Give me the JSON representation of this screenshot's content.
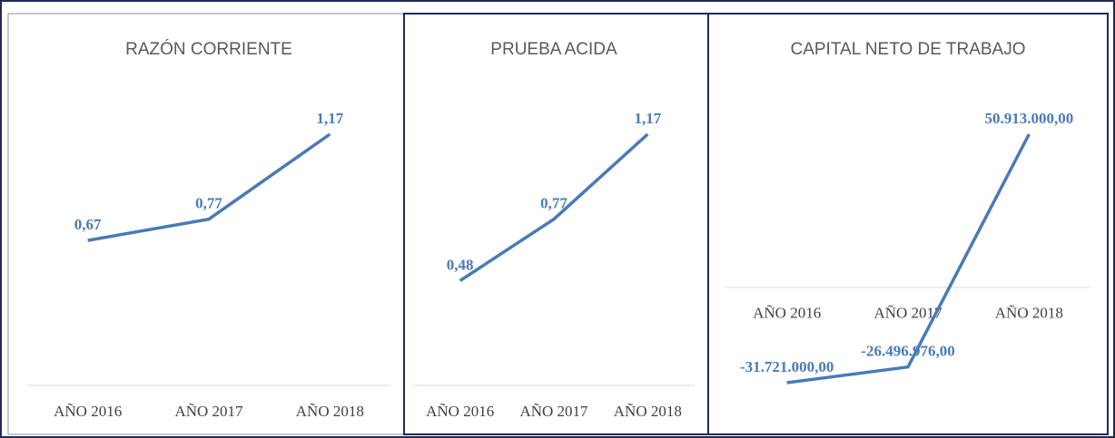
{
  "chart_data": [
    {
      "type": "line",
      "title": "RAZÓN CORRIENTE",
      "categories": [
        "AÑO 2016",
        "AÑO 2017",
        "AÑO 2018"
      ],
      "values": [
        0.67,
        0.77,
        1.17
      ],
      "value_labels": [
        "0,67",
        "0,77",
        "1,17"
      ],
      "color": "#4a7ab5"
    },
    {
      "type": "line",
      "title": "PRUEBA ACIDA",
      "categories": [
        "AÑO 2016",
        "AÑO 2017",
        "AÑO 2018"
      ],
      "values": [
        0.48,
        0.77,
        1.17
      ],
      "value_labels": [
        "0,48",
        "0,77",
        "1,17"
      ],
      "color": "#4a7ab5"
    },
    {
      "type": "line",
      "title": "CAPITAL NETO DE TRABAJO",
      "categories": [
        "AÑO 2016",
        "AÑO 2017",
        "AÑO 2018"
      ],
      "values": [
        -31721000,
        -26496976,
        50913000
      ],
      "value_labels": [
        "-31.721.000,00",
        "-26.496.976,00",
        "50.913.000,00"
      ],
      "color": "#4a7ab5"
    }
  ]
}
